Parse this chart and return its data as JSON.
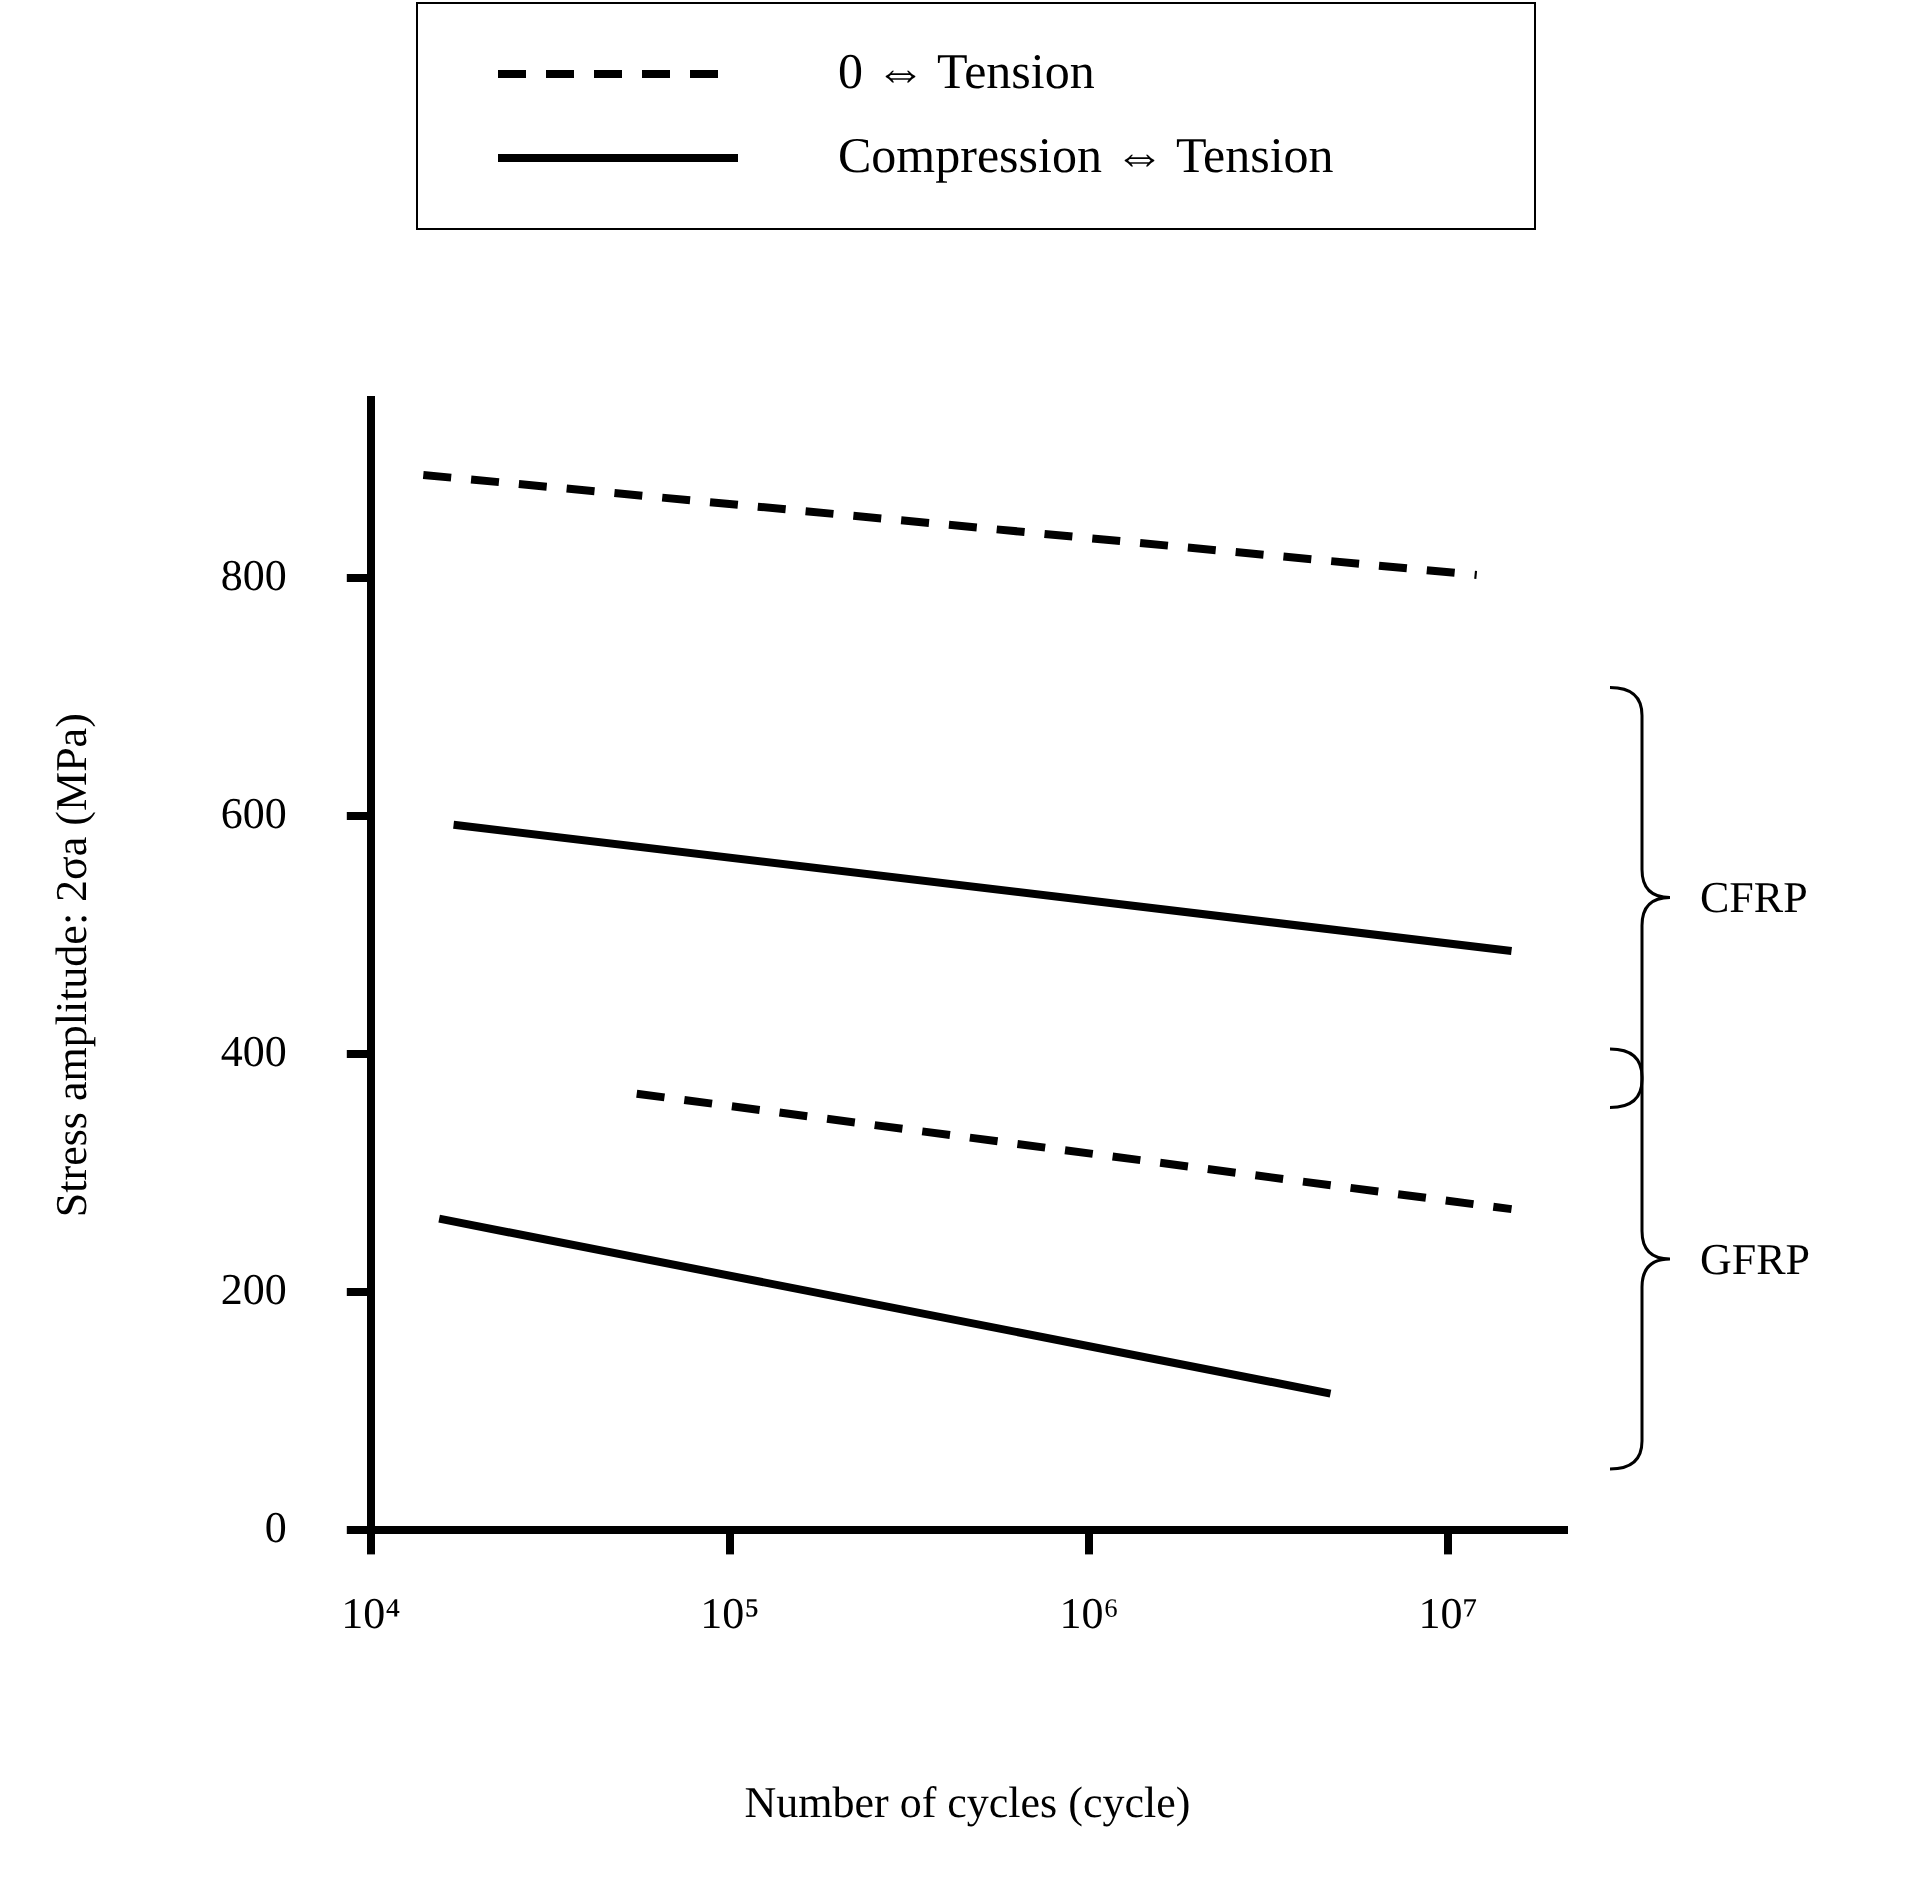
{
  "chart_data": {
    "type": "line",
    "xlabel": "Number of cycles (cycle)",
    "ylabel": "Stress amplitude: 2σa (MPa)",
    "log": "x",
    "xlim": [
      10000,
      21000000
    ],
    "xticks": [
      {
        "value": 10000,
        "label": "10⁴"
      },
      {
        "value": 100000,
        "label": "10⁵"
      },
      {
        "value": 1000000,
        "label": "10⁶"
      },
      {
        "value": 10000000,
        "label": "10⁷"
      }
    ],
    "ylim": [
      0,
      950
    ],
    "yticks": [
      0,
      200,
      400,
      600,
      800
    ],
    "grid": false,
    "legend": "top",
    "marker": "none",
    "series": [
      {
        "name": "0 ⇔ Tension",
        "color": "#000000",
        "line_style": "dashed",
        "x": [
          14000,
          12000000
        ],
        "values": [
          887,
          803
        ]
      },
      {
        "name": "Compression ⇔ Tension",
        "color": "#000000",
        "line_style": "solid",
        "x": [
          17000,
          15000000
        ],
        "values": [
          593,
          487
        ]
      },
      {
        "color": "#000000",
        "line_style": "dashed",
        "x": [
          55000,
          15000000
        ],
        "values": [
          367,
          270
        ]
      },
      {
        "color": "#000000",
        "line_style": "solid",
        "x": [
          15500,
          4700000
        ],
        "values": [
          262,
          115
        ]
      }
    ],
    "annotations": [
      "CFRP",
      "GFRP"
    ]
  }
}
